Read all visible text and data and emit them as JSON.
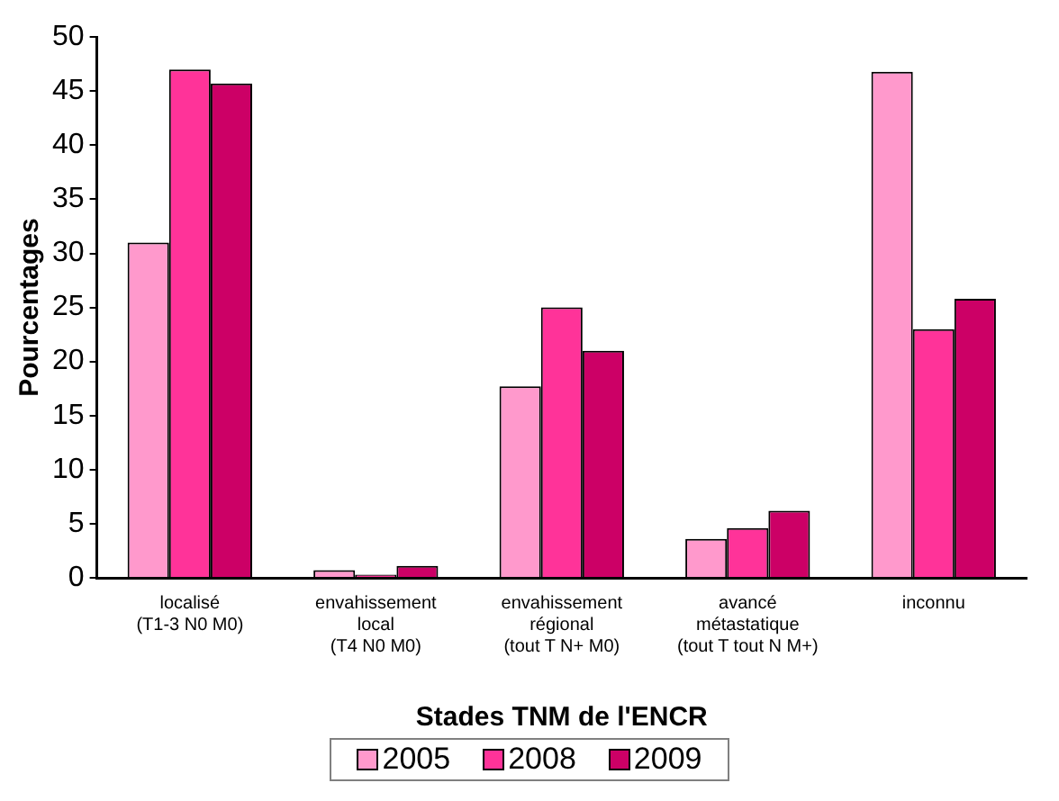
{
  "chart_data": {
    "type": "bar",
    "xlabel": "Stades TNM de l'ENCR",
    "ylabel": "Pourcentages",
    "categories": [
      "localisé\n(T1-3 N0 M0)",
      "envahissement\nlocal\n(T4 N0 M0)",
      "envahissement\nrégional\n(tout T N+ M0)",
      "avancé\nmétastatique\n(tout T tout N M+)",
      "inconnu"
    ],
    "series": [
      {
        "name": "2005",
        "color": "#ff99cc",
        "values": [
          31,
          0.7,
          17.7,
          3.6,
          46.8
        ]
      },
      {
        "name": "2008",
        "color": "#ff3399",
        "values": [
          47,
          0.3,
          25,
          4.6,
          23
        ]
      },
      {
        "name": "2009",
        "color": "#cc0066",
        "values": [
          45.7,
          1.1,
          21,
          6.2,
          25.8
        ]
      }
    ],
    "ylim": [
      0,
      50
    ],
    "yticks": [
      0,
      5,
      10,
      15,
      20,
      25,
      30,
      35,
      40,
      45,
      50
    ],
    "grid": false,
    "legend": "bottom"
  }
}
